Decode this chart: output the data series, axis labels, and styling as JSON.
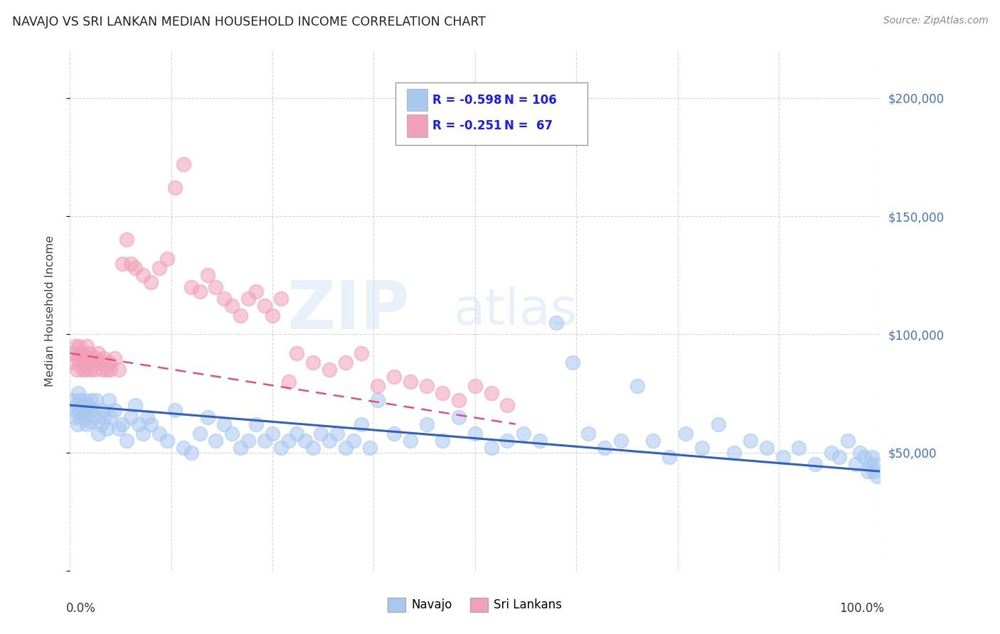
{
  "title": "NAVAJO VS SRI LANKAN MEDIAN HOUSEHOLD INCOME CORRELATION CHART",
  "source": "Source: ZipAtlas.com",
  "ylabel": "Median Household Income",
  "xlim": [
    0.0,
    1.0
  ],
  "ylim": [
    0,
    220000
  ],
  "yticks": [
    0,
    50000,
    100000,
    150000,
    200000
  ],
  "ytick_labels": [
    "",
    "$50,000",
    "$100,000",
    "$150,000",
    "$200,000"
  ],
  "legend_r1": "R = -0.598",
  "legend_n1": "N = 106",
  "legend_r2": "R = -0.251",
  "legend_n2": "N =  67",
  "legend_label1": "Navajo",
  "legend_label2": "Sri Lankans",
  "navajo_color": "#a8c8f0",
  "srilanka_color": "#f0a0b8",
  "navajo_line_color": "#3060c0",
  "srilanka_line_color": "#e05080",
  "watermark_zip": "ZIP",
  "watermark_atlas": "atlas",
  "navajo_x": [
    0.003,
    0.005,
    0.006,
    0.008,
    0.009,
    0.01,
    0.011,
    0.012,
    0.013,
    0.015,
    0.016,
    0.017,
    0.018,
    0.02,
    0.021,
    0.022,
    0.023,
    0.025,
    0.026,
    0.028,
    0.03,
    0.032,
    0.035,
    0.038,
    0.04,
    0.042,
    0.045,
    0.048,
    0.05,
    0.055,
    0.06,
    0.065,
    0.07,
    0.075,
    0.08,
    0.085,
    0.09,
    0.095,
    0.1,
    0.11,
    0.12,
    0.13,
    0.14,
    0.15,
    0.16,
    0.17,
    0.18,
    0.19,
    0.2,
    0.21,
    0.22,
    0.23,
    0.24,
    0.25,
    0.26,
    0.27,
    0.28,
    0.29,
    0.3,
    0.31,
    0.32,
    0.33,
    0.34,
    0.35,
    0.36,
    0.37,
    0.38,
    0.4,
    0.42,
    0.44,
    0.46,
    0.48,
    0.5,
    0.52,
    0.54,
    0.56,
    0.58,
    0.6,
    0.62,
    0.64,
    0.66,
    0.68,
    0.7,
    0.72,
    0.74,
    0.76,
    0.78,
    0.8,
    0.82,
    0.84,
    0.86,
    0.88,
    0.9,
    0.92,
    0.94,
    0.95,
    0.96,
    0.97,
    0.975,
    0.98,
    0.985,
    0.988,
    0.99,
    0.992,
    0.994,
    0.996
  ],
  "navajo_y": [
    72000,
    68000,
    65000,
    70000,
    62000,
    75000,
    68000,
    72000,
    65000,
    70000,
    66000,
    68000,
    72000,
    65000,
    62000,
    70000,
    68000,
    63000,
    72000,
    68000,
    65000,
    72000,
    58000,
    62000,
    68000,
    65000,
    60000,
    72000,
    65000,
    68000,
    60000,
    62000,
    55000,
    65000,
    70000,
    62000,
    58000,
    65000,
    62000,
    58000,
    55000,
    68000,
    52000,
    50000,
    58000,
    65000,
    55000,
    62000,
    58000,
    52000,
    55000,
    62000,
    55000,
    58000,
    52000,
    55000,
    58000,
    55000,
    52000,
    58000,
    55000,
    58000,
    52000,
    55000,
    62000,
    52000,
    72000,
    58000,
    55000,
    62000,
    55000,
    65000,
    58000,
    52000,
    55000,
    58000,
    55000,
    105000,
    88000,
    58000,
    52000,
    55000,
    78000,
    55000,
    48000,
    58000,
    52000,
    62000,
    50000,
    55000,
    52000,
    48000,
    52000,
    45000,
    50000,
    48000,
    55000,
    45000,
    50000,
    48000,
    42000,
    45000,
    48000,
    42000,
    45000,
    40000
  ],
  "srilanka_x": [
    0.003,
    0.005,
    0.007,
    0.008,
    0.01,
    0.011,
    0.012,
    0.013,
    0.015,
    0.016,
    0.017,
    0.018,
    0.02,
    0.021,
    0.022,
    0.024,
    0.025,
    0.026,
    0.028,
    0.03,
    0.032,
    0.035,
    0.038,
    0.04,
    0.042,
    0.045,
    0.048,
    0.05,
    0.055,
    0.06,
    0.065,
    0.07,
    0.075,
    0.08,
    0.09,
    0.1,
    0.11,
    0.12,
    0.13,
    0.14,
    0.15,
    0.16,
    0.17,
    0.18,
    0.19,
    0.2,
    0.21,
    0.22,
    0.23,
    0.24,
    0.25,
    0.26,
    0.27,
    0.28,
    0.3,
    0.32,
    0.34,
    0.36,
    0.38,
    0.4,
    0.42,
    0.44,
    0.46,
    0.48,
    0.5,
    0.52,
    0.54
  ],
  "srilanka_y": [
    92000,
    88000,
    95000,
    85000,
    90000,
    95000,
    88000,
    92000,
    85000,
    92000,
    88000,
    90000,
    85000,
    95000,
    88000,
    92000,
    85000,
    88000,
    90000,
    85000,
    90000,
    92000,
    88000,
    85000,
    90000,
    85000,
    88000,
    85000,
    90000,
    85000,
    130000,
    140000,
    130000,
    128000,
    125000,
    122000,
    128000,
    132000,
    162000,
    172000,
    120000,
    118000,
    125000,
    120000,
    115000,
    112000,
    108000,
    115000,
    118000,
    112000,
    108000,
    115000,
    80000,
    92000,
    88000,
    85000,
    88000,
    92000,
    78000,
    82000,
    80000,
    78000,
    75000,
    72000,
    78000,
    75000,
    70000
  ]
}
